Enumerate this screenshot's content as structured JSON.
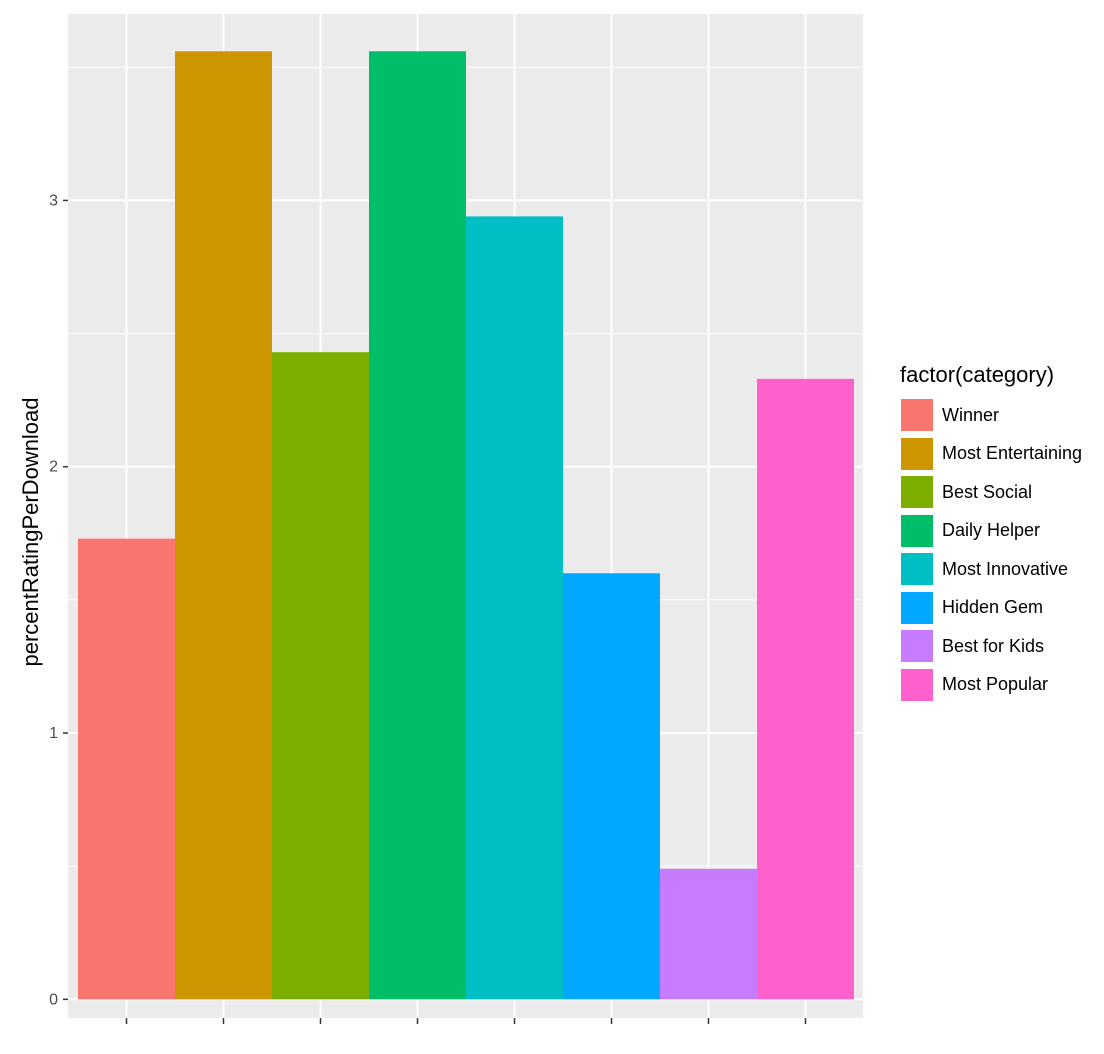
{
  "chart_data": {
    "type": "bar",
    "ylabel": "percentRatingPerDownload",
    "xlabel": "",
    "ylim": [
      -0.07,
      3.7
    ],
    "y_ticks": [
      0,
      1,
      2,
      3
    ],
    "grid": true,
    "legend_title": "factor(category)",
    "legend_position": "right",
    "categories": [
      "Winner",
      "Most Entertaining",
      "Best Social",
      "Daily Helper",
      "Most Innovative",
      "Hidden Gem",
      "Best for Kids",
      "Most Popular"
    ],
    "values": [
      1.73,
      3.56,
      2.43,
      3.56,
      2.94,
      1.6,
      0.49,
      2.33
    ],
    "colors": [
      "#F8766D",
      "#CD9600",
      "#7CAE00",
      "#00BE67",
      "#00BFC4",
      "#00A9FF",
      "#C77CFF",
      "#FF61CC"
    ]
  }
}
